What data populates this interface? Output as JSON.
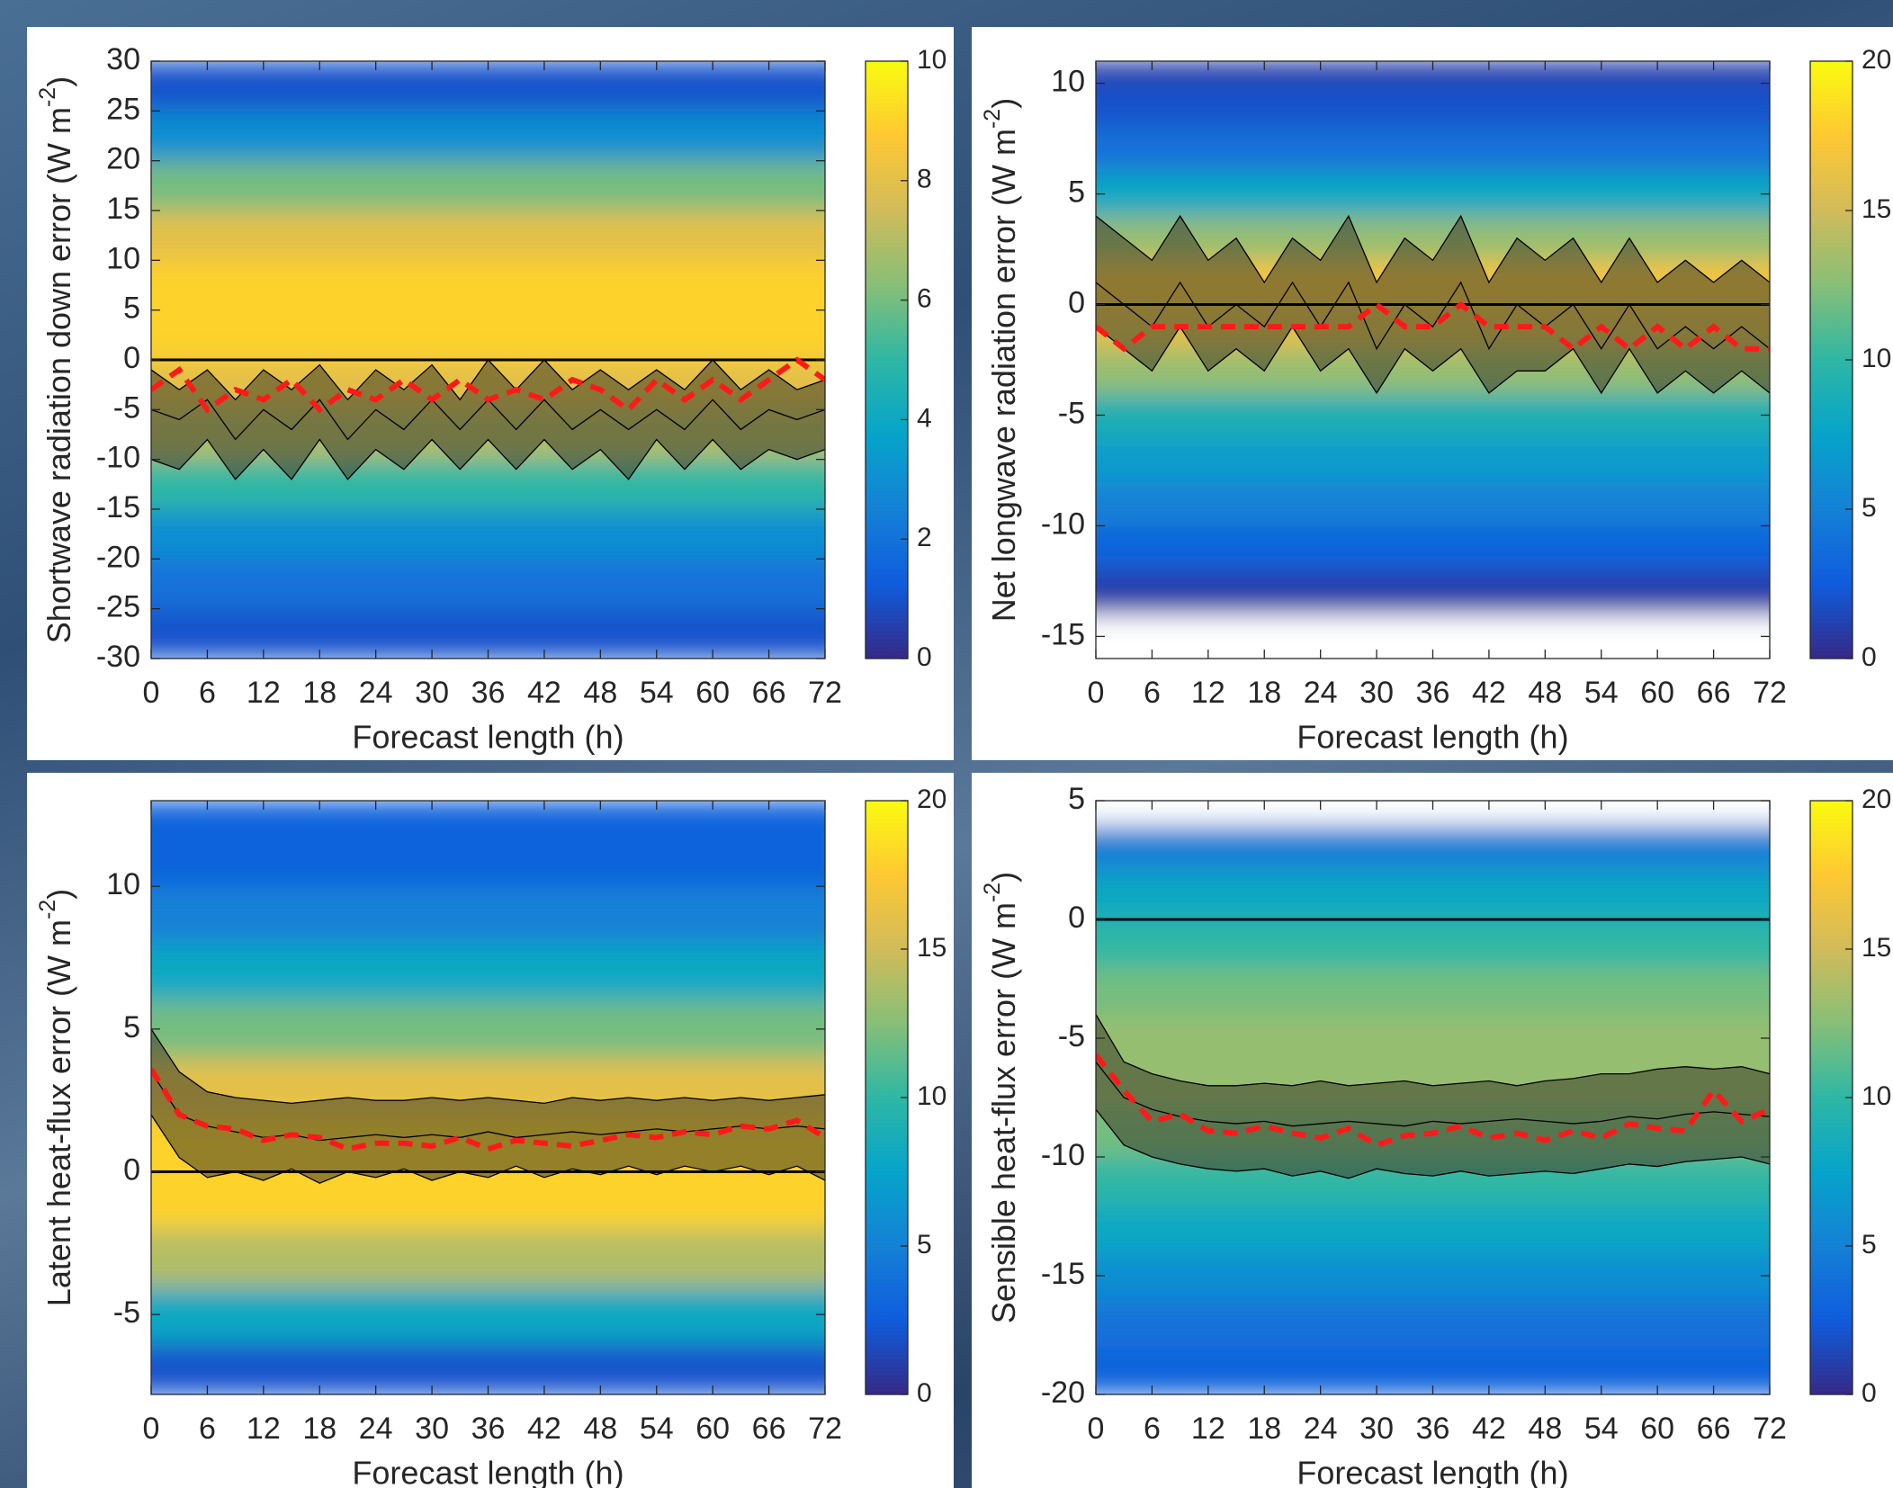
{
  "chart_data": [
    {
      "type": "contour",
      "ylabel": "Shortwave radiation down error (W m",
      "ylabel_sup": "-2",
      "ylabel_end": ")",
      "xlabel": "Forecast length (h)",
      "x": [
        0,
        3,
        6,
        9,
        12,
        15,
        18,
        21,
        24,
        27,
        30,
        33,
        36,
        39,
        42,
        45,
        48,
        51,
        54,
        57,
        60,
        63,
        66,
        69,
        72
      ],
      "xlim": [
        0,
        72
      ],
      "xticks": [
        0,
        6,
        12,
        18,
        24,
        30,
        36,
        42,
        48,
        54,
        60,
        66,
        72
      ],
      "ylim": [
        -30,
        30
      ],
      "yticks": [
        -30,
        -25,
        -20,
        -15,
        -10,
        -5,
        0,
        5,
        10,
        15,
        20,
        25,
        30
      ],
      "hline": 0,
      "density_edges": [
        -30,
        -25,
        -20,
        -15,
        -10,
        -5,
        0,
        5,
        10,
        15,
        20,
        25,
        30
      ],
      "density": [
        1,
        2,
        3,
        5,
        7,
        8,
        9,
        9,
        8,
        6,
        3,
        1
      ],
      "clim": [
        0,
        10
      ],
      "cticks": [
        0,
        2,
        4,
        6,
        8,
        10
      ],
      "series": [
        {
          "color": "#000000",
          "style": "solid",
          "values": [
            -1,
            -3,
            -1,
            -4,
            -1,
            -3,
            -0.5,
            -4,
            -1,
            -3,
            -0.5,
            -4,
            0,
            -3,
            0,
            -3,
            -1,
            -3,
            -1,
            -3,
            0,
            -3,
            -1,
            -3,
            -2
          ]
        },
        {
          "color": "#000000",
          "style": "solid",
          "values": [
            -5,
            -6,
            -4,
            -8,
            -5,
            -7,
            -4,
            -8,
            -5,
            -7,
            -4,
            -7,
            -4,
            -7,
            -4,
            -7,
            -5,
            -7,
            -5,
            -7,
            -4,
            -7,
            -5,
            -6,
            -5
          ]
        },
        {
          "color": "#000000",
          "style": "solid",
          "values": [
            -10,
            -11,
            -8,
            -12,
            -9,
            -12,
            -8,
            -12,
            -9,
            -11,
            -8,
            -11,
            -8,
            -11,
            -8,
            -11,
            -9,
            -12,
            -8,
            -11,
            -8,
            -11,
            -9,
            -10,
            -9
          ]
        },
        {
          "color": "#ff1a1a",
          "style": "dashed",
          "values": [
            -3,
            -1,
            -5,
            -3,
            -4,
            -2,
            -5,
            -3,
            -4,
            -2,
            -4,
            -2,
            -4,
            -3,
            -4,
            -2,
            -3,
            -5,
            -2,
            -4,
            -2,
            -4,
            -2,
            0,
            -2
          ]
        }
      ]
    },
    {
      "type": "contour",
      "ylabel": "Net longwave radiation error (W m",
      "ylabel_sup": "-2",
      "ylabel_end": ")",
      "xlabel": "Forecast length (h)",
      "x": [
        0,
        3,
        6,
        9,
        12,
        15,
        18,
        21,
        24,
        27,
        30,
        33,
        36,
        39,
        42,
        45,
        48,
        51,
        54,
        57,
        60,
        63,
        66,
        69,
        72
      ],
      "xlim": [
        0,
        72
      ],
      "xticks": [
        0,
        6,
        12,
        18,
        24,
        30,
        36,
        42,
        48,
        54,
        60,
        66,
        72
      ],
      "ylim": [
        -16,
        11
      ],
      "yticks": [
        -15,
        -10,
        -5,
        0,
        5,
        10
      ],
      "hline": 0,
      "density_edges": [
        -16,
        -14,
        -12,
        -10,
        -8,
        -6,
        -4,
        -2,
        0,
        2,
        4,
        6,
        8,
        10,
        11
      ],
      "density": [
        0,
        1,
        3,
        5,
        7,
        9,
        13,
        16,
        17,
        13,
        8,
        4,
        2,
        1
      ],
      "clim": [
        0,
        20
      ],
      "cticks": [
        0,
        5,
        10,
        15,
        20
      ],
      "series": [
        {
          "color": "#000000",
          "style": "solid",
          "values": [
            4,
            3,
            2,
            4,
            2,
            3,
            1,
            3,
            2,
            4,
            1,
            3,
            2,
            4,
            1,
            3,
            2,
            3,
            1,
            3,
            1,
            2,
            1,
            2,
            1
          ]
        },
        {
          "color": "#000000",
          "style": "solid",
          "values": [
            1,
            0,
            -1,
            1,
            -1,
            0,
            -1,
            1,
            -1,
            1,
            -2,
            0,
            -1,
            1,
            -2,
            0,
            -1,
            0,
            -2,
            0,
            -2,
            -1,
            -2,
            -1,
            -2
          ]
        },
        {
          "color": "#000000",
          "style": "solid",
          "values": [
            -1,
            -2,
            -3,
            -1,
            -3,
            -2,
            -3,
            -1,
            -3,
            -2,
            -4,
            -2,
            -3,
            -2,
            -4,
            -3,
            -3,
            -2,
            -4,
            -2,
            -4,
            -3,
            -4,
            -3,
            -4
          ]
        },
        {
          "color": "#ff1a1a",
          "style": "dashed",
          "values": [
            -1,
            -2,
            -1,
            -1,
            -1,
            -1,
            -1,
            -1,
            -1,
            -1,
            0,
            -1,
            -1,
            0,
            -1,
            -1,
            -1,
            -2,
            -1,
            -2,
            -1,
            -2,
            -1,
            -2,
            -2
          ]
        }
      ]
    },
    {
      "type": "contour",
      "ylabel": "Latent heat-flux error (W m",
      "ylabel_sup": "-2",
      "ylabel_end": ")",
      "xlabel": "Forecast length (h)",
      "x": [
        0,
        3,
        6,
        9,
        12,
        15,
        18,
        21,
        24,
        27,
        30,
        33,
        36,
        39,
        42,
        45,
        48,
        51,
        54,
        57,
        60,
        63,
        66,
        69,
        72
      ],
      "xlim": [
        0,
        72
      ],
      "xticks": [
        0,
        6,
        12,
        18,
        24,
        30,
        36,
        42,
        48,
        54,
        60,
        66,
        72
      ],
      "ylim": [
        -7.8,
        13
      ],
      "yticks": [
        -5,
        0,
        5,
        10
      ],
      "hline": 0,
      "density_edges": [
        -7.8,
        -6,
        -4,
        -2,
        0,
        2,
        4,
        6,
        8,
        10,
        13
      ],
      "density": [
        2,
        8,
        14,
        18,
        18,
        16,
        12,
        8,
        5,
        3
      ],
      "clim": [
        0,
        20
      ],
      "cticks": [
        0,
        5,
        10,
        15,
        20
      ],
      "series": [
        {
          "color": "#000000",
          "style": "solid",
          "values": [
            5,
            3.5,
            2.8,
            2.6,
            2.5,
            2.4,
            2.5,
            2.6,
            2.5,
            2.5,
            2.6,
            2.5,
            2.6,
            2.5,
            2.4,
            2.6,
            2.5,
            2.6,
            2.5,
            2.6,
            2.5,
            2.6,
            2.5,
            2.6,
            2.7
          ]
        },
        {
          "color": "#000000",
          "style": "solid",
          "values": [
            3.5,
            2,
            1.6,
            1.4,
            1.2,
            1.3,
            1.1,
            1.2,
            1.3,
            1.2,
            1.3,
            1.2,
            1.4,
            1.2,
            1.3,
            1.4,
            1.3,
            1.4,
            1.5,
            1.4,
            1.5,
            1.6,
            1.5,
            1.6,
            1.5
          ]
        },
        {
          "color": "#000000",
          "style": "solid",
          "values": [
            2,
            0.5,
            -0.2,
            0,
            -0.3,
            0.1,
            -0.4,
            0,
            -0.2,
            0.1,
            -0.3,
            0,
            -0.2,
            0.2,
            -0.2,
            0.1,
            -0.1,
            0.2,
            -0.1,
            0.2,
            0,
            0.2,
            -0.1,
            0.2,
            -0.3
          ]
        },
        {
          "color": "#ff1a1a",
          "style": "dashed",
          "values": [
            3.6,
            2,
            1.6,
            1.5,
            1.1,
            1.3,
            1.2,
            0.8,
            1,
            1,
            0.9,
            1.2,
            0.8,
            1.1,
            1,
            0.9,
            1.1,
            1.3,
            1.2,
            1.4,
            1.3,
            1.6,
            1.5,
            1.8,
            1.2
          ]
        }
      ]
    },
    {
      "type": "contour",
      "ylabel": "Sensible heat-flux error (W m",
      "ylabel_sup": "-2",
      "ylabel_end": ")",
      "xlabel": "Forecast length (h)",
      "x": [
        0,
        3,
        6,
        9,
        12,
        15,
        18,
        21,
        24,
        27,
        30,
        33,
        36,
        39,
        42,
        45,
        48,
        51,
        54,
        57,
        60,
        63,
        66,
        69,
        72
      ],
      "xlim": [
        0,
        72
      ],
      "xticks": [
        0,
        6,
        12,
        18,
        24,
        30,
        36,
        42,
        48,
        54,
        60,
        66,
        72
      ],
      "ylim": [
        -20,
        5
      ],
      "yticks": [
        -20,
        -15,
        -10,
        -5,
        0,
        5
      ],
      "hline": 0,
      "density_edges": [
        -20,
        -18,
        -16,
        -14,
        -12,
        -10,
        -8,
        -6,
        -4,
        -2,
        0,
        2,
        4,
        5
      ],
      "density": [
        3,
        4,
        6,
        8,
        10,
        12,
        13,
        13,
        12,
        10,
        8,
        5,
        0
      ],
      "clim": [
        0,
        20
      ],
      "cticks": [
        0,
        5,
        10,
        15,
        20
      ],
      "series": [
        {
          "color": "#000000",
          "style": "solid",
          "values": [
            -4,
            -6,
            -6.5,
            -6.8,
            -7,
            -7,
            -6.9,
            -7,
            -6.8,
            -7,
            -6.9,
            -6.8,
            -7,
            -6.9,
            -6.8,
            -7,
            -6.8,
            -6.7,
            -6.5,
            -6.5,
            -6.3,
            -6.2,
            -6.3,
            -6.2,
            -6.5
          ]
        },
        {
          "color": "#000000",
          "style": "solid",
          "values": [
            -6,
            -7.5,
            -8,
            -8.3,
            -8.5,
            -8.6,
            -8.5,
            -8.7,
            -8.6,
            -8.5,
            -8.6,
            -8.7,
            -8.5,
            -8.6,
            -8.5,
            -8.4,
            -8.5,
            -8.6,
            -8.5,
            -8.3,
            -8.4,
            -8.2,
            -8.1,
            -8.2,
            -8.3
          ]
        },
        {
          "color": "#000000",
          "style": "solid",
          "values": [
            -8,
            -9.5,
            -10,
            -10.3,
            -10.5,
            -10.6,
            -10.5,
            -10.8,
            -10.6,
            -10.9,
            -10.5,
            -10.7,
            -10.8,
            -10.6,
            -10.8,
            -10.7,
            -10.6,
            -10.7,
            -10.5,
            -10.3,
            -10.4,
            -10.2,
            -10.1,
            -10,
            -10.3
          ]
        },
        {
          "color": "#ff1a1a",
          "style": "dashed",
          "values": [
            -5.7,
            -7.2,
            -8.5,
            -8.2,
            -8.9,
            -9,
            -8.7,
            -9,
            -9.2,
            -8.8,
            -9.5,
            -9.1,
            -9,
            -8.7,
            -9.2,
            -9,
            -9.3,
            -8.9,
            -9.2,
            -8.6,
            -8.8,
            -8.9,
            -7.2,
            -8.5,
            -8
          ]
        }
      ]
    }
  ]
}
